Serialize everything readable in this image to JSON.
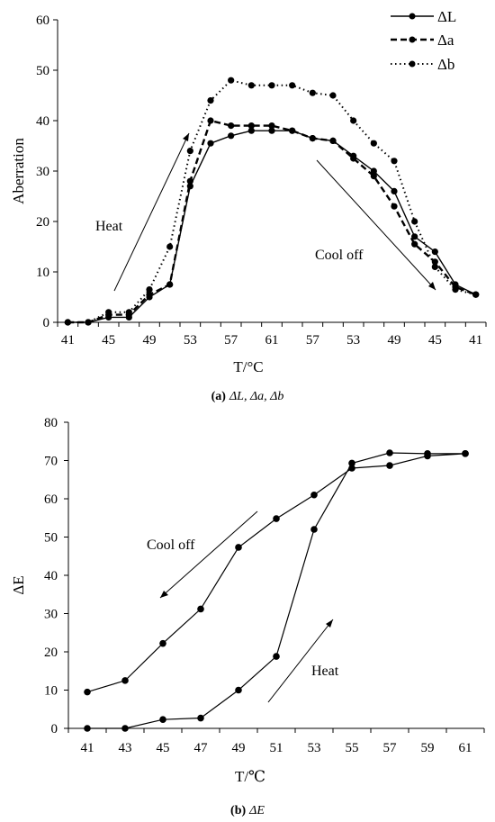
{
  "chart_data": [
    {
      "type": "line",
      "panel_label": "(a)",
      "caption": "ΔL, Δa, Δb",
      "xlabel": "T/°C",
      "ylabel": "Aberration",
      "ylim": [
        0,
        60
      ],
      "yticks": [
        "0",
        "10",
        "20",
        "30",
        "40",
        "50",
        "60"
      ],
      "categories": [
        "41",
        "43",
        "45",
        "47",
        "49",
        "51",
        "53",
        "55",
        "57",
        "59",
        "61",
        "63",
        "57",
        "55",
        "53",
        "51",
        "49",
        "47",
        "45",
        "43",
        "41"
      ],
      "tick_labels": [
        "41",
        "45",
        "49",
        "53",
        "57",
        "61",
        "57",
        "53",
        "49",
        "45",
        "41"
      ],
      "legend_position": "top-right",
      "series": [
        {
          "name": "ΔL",
          "style": "solid",
          "values": [
            0,
            0,
            1,
            1,
            5,
            7.5,
            27,
            35.5,
            37,
            38,
            38,
            38,
            36.5,
            36,
            33,
            30,
            26,
            17,
            14,
            7.5,
            5.5
          ]
        },
        {
          "name": "Δa",
          "style": "dashed",
          "values": [
            0,
            0,
            1.5,
            1.5,
            5.5,
            7.5,
            28,
            40,
            39,
            39,
            39,
            38,
            36.5,
            36,
            32.5,
            29,
            23,
            15.5,
            12,
            7,
            5.5
          ]
        },
        {
          "name": "Δb",
          "style": "dotted",
          "values": [
            0,
            0,
            2,
            2,
            6.5,
            15,
            34,
            44,
            48,
            47,
            47,
            47,
            45.5,
            45,
            40,
            35.5,
            32,
            20,
            11,
            6.5,
            5.5
          ]
        }
      ],
      "annotations": [
        "Heat",
        "Cool off"
      ]
    },
    {
      "type": "line",
      "panel_label": "(b)",
      "caption": "ΔE",
      "xlabel": "T/℃",
      "ylabel": "ΔE",
      "ylim": [
        0,
        80
      ],
      "yticks": [
        "0",
        "10",
        "20",
        "30",
        "40",
        "50",
        "60",
        "70",
        "80"
      ],
      "categories": [
        "41",
        "43",
        "45",
        "47",
        "49",
        "51",
        "53",
        "55",
        "57",
        "59",
        "61"
      ],
      "series": [
        {
          "name": "Heat",
          "values": [
            0,
            0,
            2.3,
            2.7,
            10,
            18.8,
            52,
            69.3,
            72,
            71.8,
            71.8
          ]
        },
        {
          "name": "Cool off",
          "values": [
            9.5,
            12.5,
            22.2,
            31.2,
            47.3,
            54.8,
            61,
            68,
            68.7,
            71.2,
            71.8
          ]
        }
      ],
      "annotations": [
        "Cool off",
        "Heat"
      ]
    }
  ]
}
